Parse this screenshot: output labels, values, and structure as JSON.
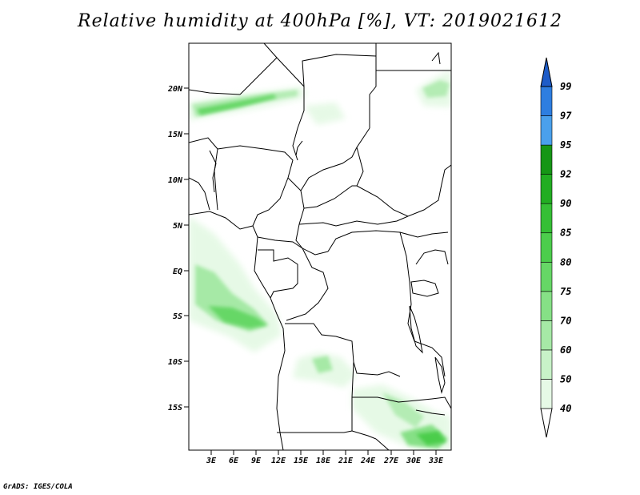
{
  "title": "Relative humidity at 400hPa [%], VT: 2019021612",
  "credit": "GrADS: IGES/COLA",
  "axes": {
    "lat_labels": [
      "20N",
      "15N",
      "10N",
      "5N",
      "EQ",
      "5S",
      "10S",
      "15S"
    ],
    "lon_labels": [
      "3E",
      "6E",
      "9E",
      "12E",
      "15E",
      "18E",
      "21E",
      "24E",
      "27E",
      "30E",
      "33E"
    ]
  },
  "legend": {
    "levels": [
      "40",
      "50",
      "60",
      "70",
      "75",
      "80",
      "85",
      "90",
      "92",
      "95",
      "97",
      "99"
    ],
    "colors": [
      "#ffffff",
      "#e6f9e6",
      "#c8f2c8",
      "#a6e9a6",
      "#86e086",
      "#66d766",
      "#4ccd4c",
      "#35bf35",
      "#22ad22",
      "#169616",
      "#4aa0ec",
      "#2e7ee0",
      "#1e5cc8"
    ]
  },
  "chart_data": {
    "type": "heatmap",
    "title": "Relative humidity at 400hPa [%], VT: 2019021612",
    "variable": "Relative humidity at 400hPa",
    "units": "%",
    "valid_time": "2019021612",
    "lon_range": [
      0,
      35
    ],
    "lat_range": [
      -20,
      25
    ],
    "contour_levels": [
      40,
      50,
      60,
      70,
      75,
      80,
      85,
      90,
      92,
      95,
      97,
      99
    ],
    "moist_regions": [
      {
        "region": "Sahara band near 17-19N, 0-13E",
        "rh_range": [
          40,
          75
        ]
      },
      {
        "region": "northeast Sudan/Egypt corner near 18-21N, 32-35E",
        "rh_range": [
          40,
          70
        ]
      },
      {
        "region": "Gulf of Guinea / Gabon coast 0-8S, 0-10E",
        "rh_range": [
          50,
          80
        ]
      },
      {
        "region": "central Angola near 10S, 18E",
        "rh_range": [
          40,
          60
        ]
      },
      {
        "region": "Zambia / Mozambique 15-20S, 22-35E",
        "rh_range": [
          40,
          75
        ]
      }
    ]
  }
}
